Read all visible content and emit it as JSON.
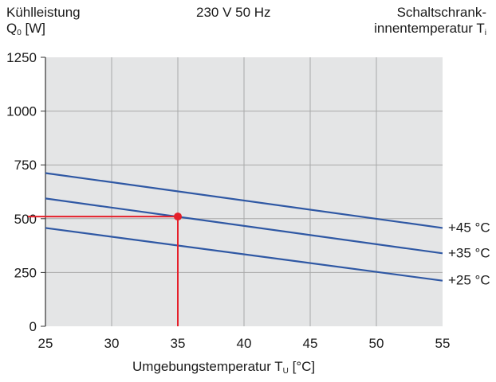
{
  "header": {
    "y_title_line1": "Kühlleistung",
    "y_title_line2_main": "Q",
    "y_title_line2_sub": "0",
    "y_title_line2_unit": " [W]",
    "center_title": "230 V 50 Hz",
    "right_title_line1": "Schaltschrank-",
    "right_title_line2_main": "innentemperatur T",
    "right_title_line2_sub": "i"
  },
  "x_axis": {
    "label_main": "Umgebungstemperatur T",
    "label_sub": "U",
    "label_unit": " [°C]"
  },
  "chart_data": {
    "type": "line",
    "title": "230 V 50 Hz",
    "ylabel": "Kühlleistung Q0 [W]",
    "xlabel": "Umgebungstemperatur TU [°C]",
    "xlim": [
      25,
      55
    ],
    "ylim": [
      0,
      1250
    ],
    "x_ticks": [
      "25",
      "30",
      "35",
      "40",
      "45",
      "50",
      "55"
    ],
    "y_ticks": [
      "0",
      "250",
      "500",
      "750",
      "1000",
      "1250"
    ],
    "grid": true,
    "plot_background": "#e4e5e6",
    "series": [
      {
        "name": "+45 °C",
        "color": "#2f58a4",
        "x": [
          25,
          55
        ],
        "y": [
          712,
          457
        ]
      },
      {
        "name": "+35 °C",
        "color": "#2f58a4",
        "x": [
          25,
          55
        ],
        "y": [
          594,
          339
        ]
      },
      {
        "name": "+25 °C",
        "color": "#2f58a4",
        "x": [
          25,
          55
        ],
        "y": [
          457,
          212
        ]
      }
    ],
    "highlight": {
      "color": "#e5202a",
      "point": {
        "x": 35,
        "y": 510
      }
    }
  }
}
